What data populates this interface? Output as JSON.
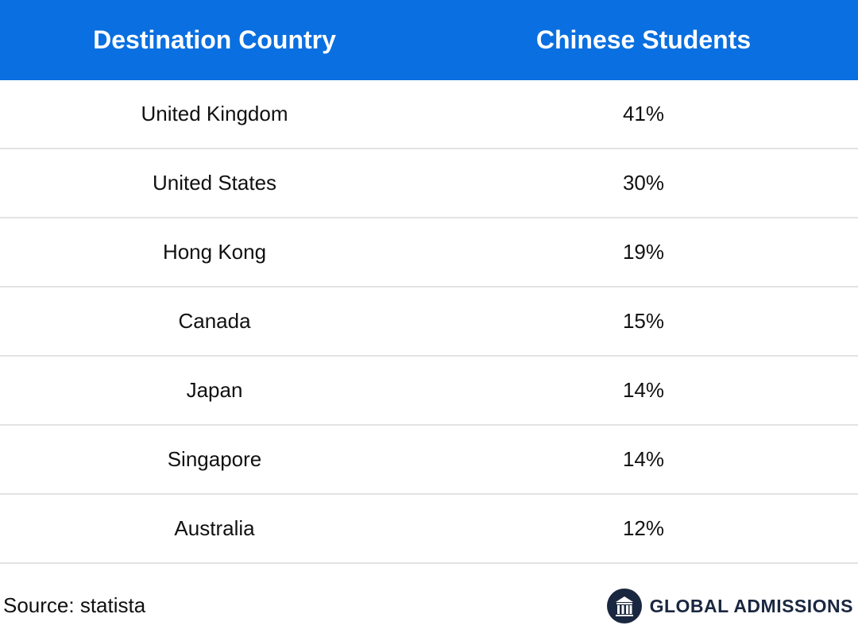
{
  "chart_data": {
    "type": "table",
    "columns": [
      "Destination Country",
      "Chinese Students"
    ],
    "rows": [
      [
        "United Kingdom",
        "41%"
      ],
      [
        "United States",
        "30%"
      ],
      [
        "Hong Kong",
        "19%"
      ],
      [
        "Canada",
        "15%"
      ],
      [
        "Japan",
        "14%"
      ],
      [
        "Singapore",
        "14%"
      ],
      [
        "Australia",
        "12%"
      ]
    ]
  },
  "footer": {
    "source": "Source: statista",
    "brand": "GLOBAL ADMISSIONS"
  },
  "colors": {
    "header_bg": "#0a6fe0",
    "brand": "#1a2740",
    "row_border": "#e3e3e3"
  },
  "icons": {
    "brand": "columns-building-logo-icon"
  }
}
